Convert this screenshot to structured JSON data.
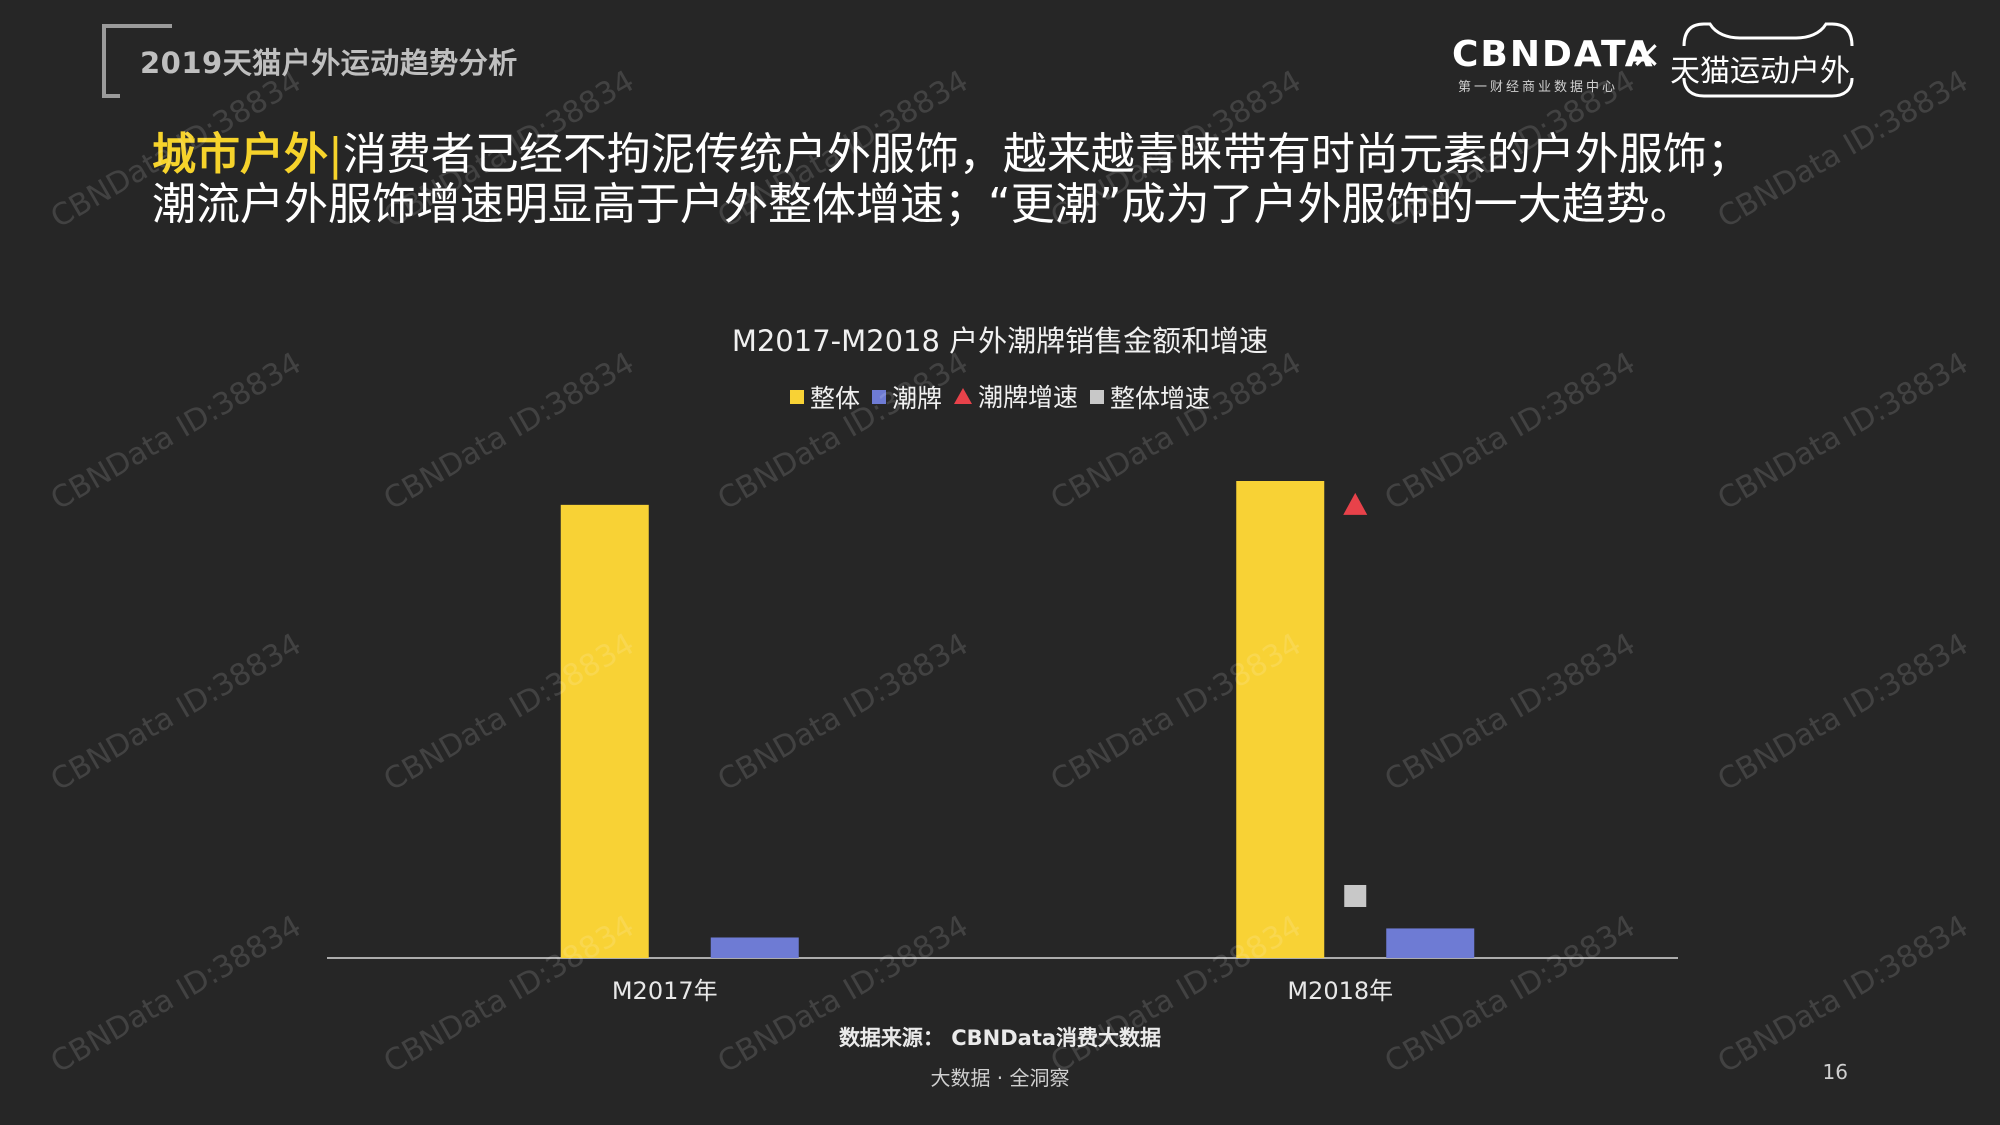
{
  "header": {
    "report_title": "2019天猫户外运动趋势分析",
    "cbndata_logo": "CBNDATA",
    "cbndata_tagline": "第一财经商业数据中心",
    "times_sign": "×",
    "tmall_logo": "天猫运动户外"
  },
  "headline": {
    "highlight": "城市户外",
    "separator": "|",
    "line1": "消费者已经不拘泥传统户外服饰，越来越青睐带有时尚元素的户外服饰；",
    "line2": "潮流户外服饰增速明显高于户外整体增速；“更潮”成为了户外服饰的一大趋势。"
  },
  "chart_data": {
    "type": "bar",
    "title": "M2017-M2018 户外潮牌销售金额和增速",
    "categories": [
      "M2017年",
      "M2018年"
    ],
    "series": [
      {
        "name": "整体",
        "kind": "bar",
        "color": "#f8d235",
        "values": [
          95,
          100
        ]
      },
      {
        "name": "潮牌",
        "kind": "bar",
        "color": "#6e7bd4",
        "values": [
          4.3,
          6.2
        ]
      },
      {
        "name": "潮牌增速",
        "kind": "marker",
        "marker": "triangle",
        "color": "#e8424a",
        "values": [
          null,
          95
        ]
      },
      {
        "name": "整体增速",
        "kind": "marker",
        "marker": "square",
        "color": "#c8c8c8",
        "values": [
          null,
          13
        ]
      }
    ],
    "ylim": [
      0,
      100
    ],
    "grid": false,
    "legend_position": "top"
  },
  "footer": {
    "source": "数据来源： CBNData消费大数据",
    "slogan": "大数据 · 全洞察",
    "page_number": "16"
  },
  "watermark": "CBNData ID:38834"
}
